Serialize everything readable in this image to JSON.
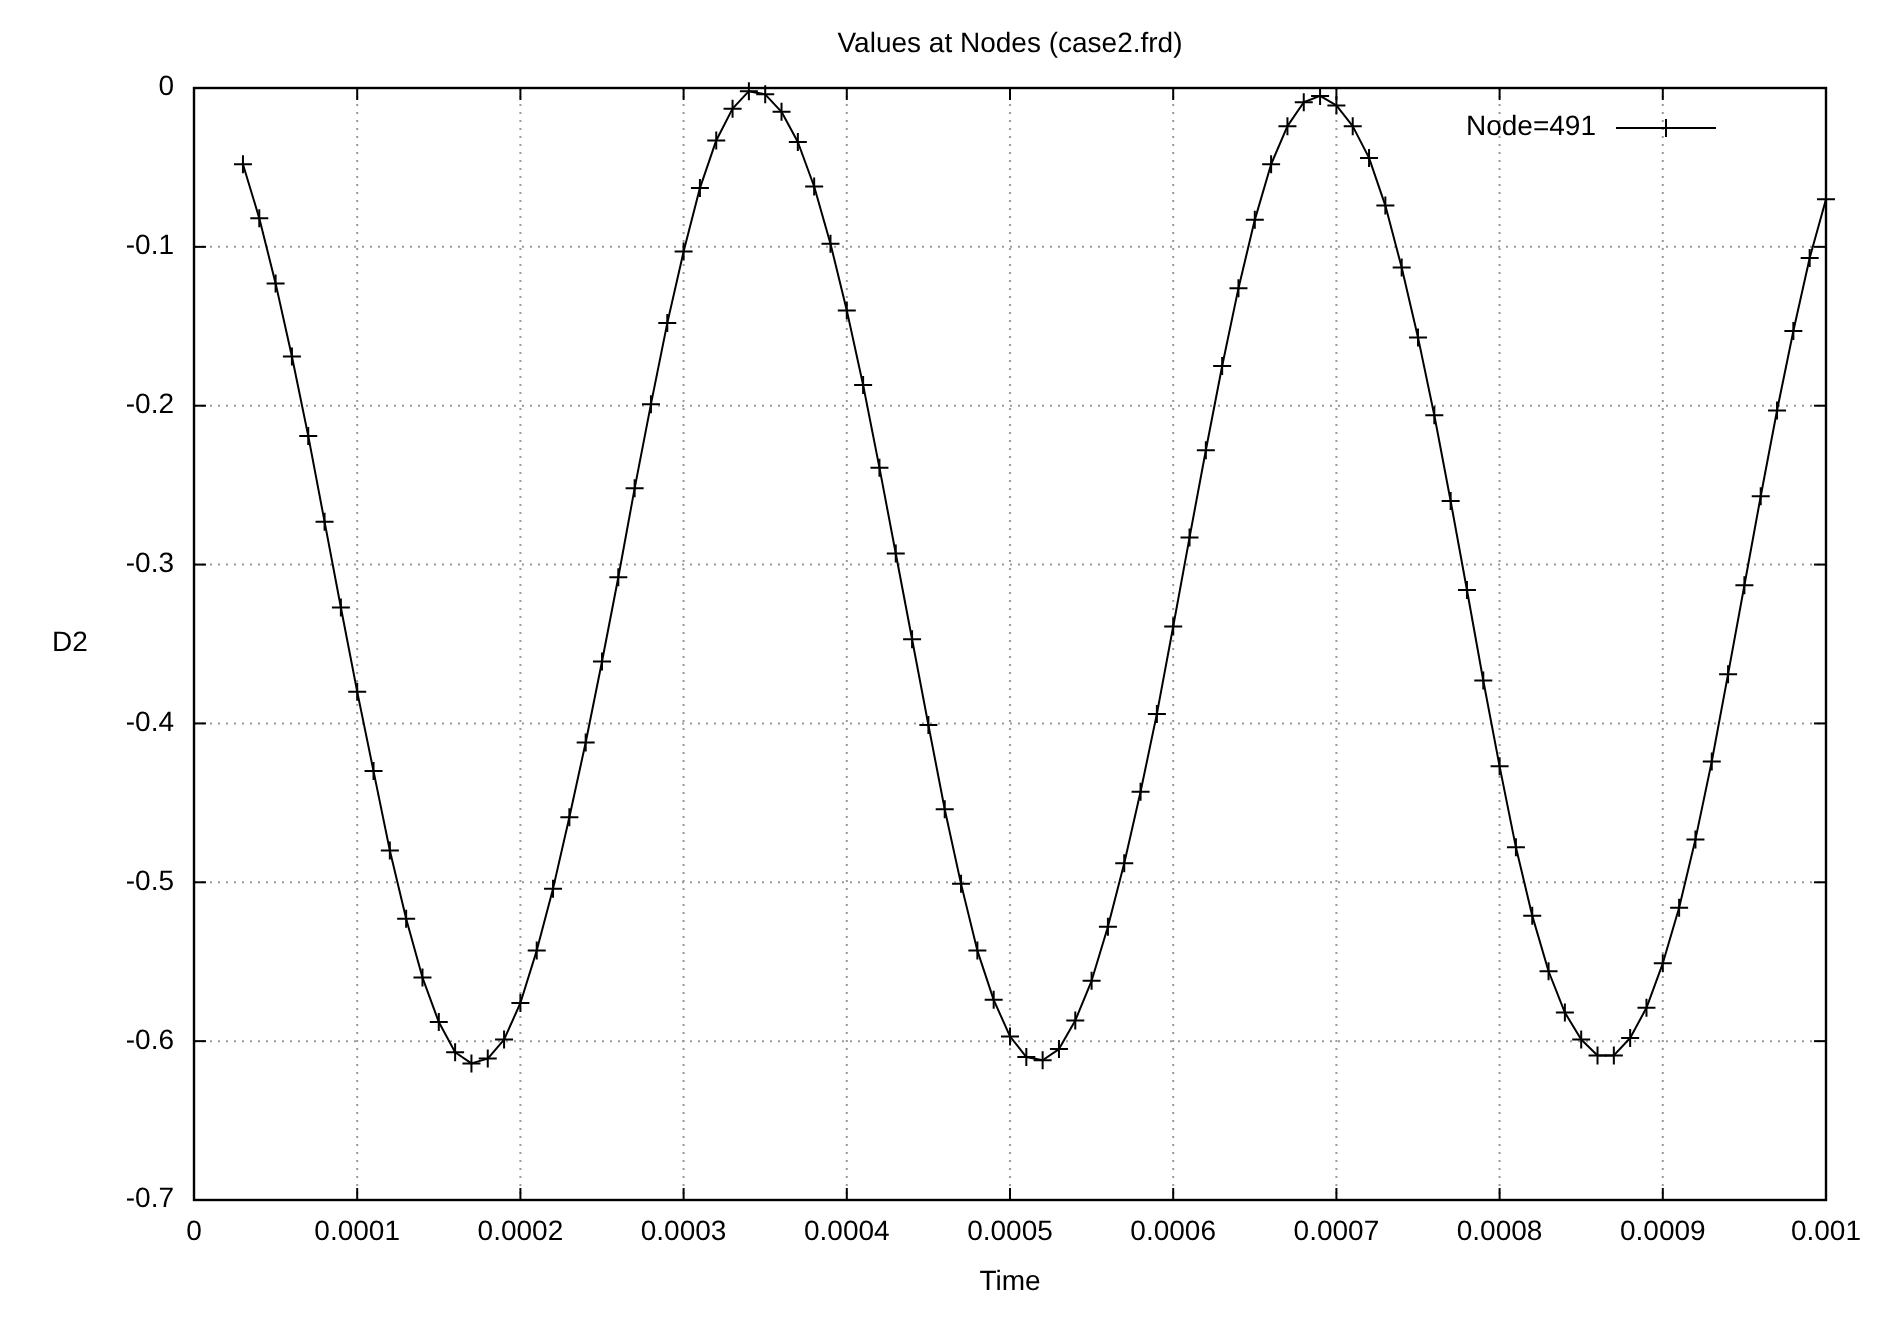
{
  "chart_data": {
    "type": "line",
    "title": "Values at Nodes (case2.frd)",
    "xlabel": "Time",
    "ylabel": "D2",
    "x": [
      3e-05,
      4e-05,
      5e-05,
      6e-05,
      7e-05,
      8e-05,
      9e-05,
      0.0001,
      0.00011,
      0.00012,
      0.00013,
      0.00014,
      0.00015,
      0.00016,
      0.00017,
      0.00018,
      0.00019,
      0.0002,
      0.00021,
      0.00022,
      0.00023,
      0.00024,
      0.00025,
      0.00026,
      0.00027,
      0.00028,
      0.00029,
      0.0003,
      0.00031,
      0.00032,
      0.00033,
      0.00034,
      0.00035,
      0.00036,
      0.00037,
      0.00038,
      0.00039,
      0.0004,
      0.00041,
      0.00042,
      0.00043,
      0.00044,
      0.00045,
      0.00046,
      0.00047,
      0.00048,
      0.00049,
      0.0005,
      0.00051,
      0.00052,
      0.00053,
      0.00054,
      0.00055,
      0.00056,
      0.00057,
      0.00058,
      0.00059,
      0.0006,
      0.00061,
      0.00062,
      0.00063,
      0.00064,
      0.00065,
      0.00066,
      0.00067,
      0.00068,
      0.00069,
      0.0007,
      0.00071,
      0.00072,
      0.00073,
      0.00074,
      0.00075,
      0.00076,
      0.00077,
      0.00078,
      0.00079,
      0.0008,
      0.00081,
      0.00082,
      0.00083,
      0.00084,
      0.00085,
      0.00086,
      0.00087,
      0.00088,
      0.00089,
      0.0009,
      0.00091,
      0.00092,
      0.00093,
      0.00094,
      0.00095,
      0.00096,
      0.00097,
      0.00098,
      0.00099,
      0.001
    ],
    "series": [
      {
        "name": "Node=491",
        "color": "#000000",
        "values": [
          -0.048,
          -0.082,
          -0.123,
          -0.169,
          -0.219,
          -0.273,
          -0.327,
          -0.38,
          -0.43,
          -0.48,
          -0.523,
          -0.56,
          -0.588,
          -0.607,
          -0.614,
          -0.611,
          -0.599,
          -0.576,
          -0.543,
          -0.504,
          -0.459,
          -0.412,
          -0.361,
          -0.308,
          -0.252,
          -0.199,
          -0.148,
          -0.103,
          -0.063,
          -0.033,
          -0.013,
          -0.002,
          -0.004,
          -0.015,
          -0.034,
          -0.062,
          -0.098,
          -0.14,
          -0.187,
          -0.239,
          -0.293,
          -0.347,
          -0.401,
          -0.454,
          -0.501,
          -0.543,
          -0.574,
          -0.597,
          -0.61,
          -0.612,
          -0.605,
          -0.587,
          -0.562,
          -0.528,
          -0.488,
          -0.443,
          -0.394,
          -0.339,
          -0.283,
          -0.228,
          -0.175,
          -0.126,
          -0.083,
          -0.048,
          -0.024,
          -0.009,
          -0.005,
          -0.011,
          -0.024,
          -0.044,
          -0.074,
          -0.113,
          -0.157,
          -0.206,
          -0.26,
          -0.316,
          -0.373,
          -0.427,
          -0.478,
          -0.521,
          -0.556,
          -0.582,
          -0.599,
          -0.609,
          -0.609,
          -0.598,
          -0.579,
          -0.551,
          -0.516,
          -0.473,
          -0.424,
          -0.369,
          -0.313,
          -0.257,
          -0.203,
          -0.153,
          -0.107,
          -0.07
        ]
      }
    ],
    "xlim": [
      0,
      0.001
    ],
    "xticks": [
      0,
      0.0001,
      0.0002,
      0.0003,
      0.0004,
      0.0005,
      0.0006,
      0.0007,
      0.0008,
      0.0009,
      0.001
    ],
    "ylim": [
      -0.7,
      0
    ],
    "yticks": [
      -0.7,
      -0.6,
      -0.5,
      -0.4,
      -0.3,
      -0.2,
      -0.1,
      0
    ],
    "grid": true,
    "legend": "top right",
    "marker": "cross",
    "line_style": "solid"
  }
}
